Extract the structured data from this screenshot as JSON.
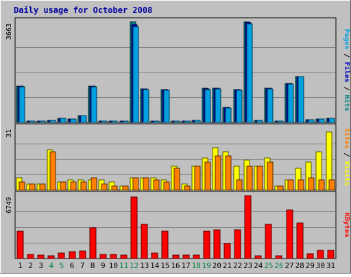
{
  "chart_data": {
    "type": "bar",
    "title": "Daily usage for October 2008",
    "categories": [
      "1",
      "2",
      "3",
      "4",
      "5",
      "6",
      "7",
      "8",
      "9",
      "10",
      "11",
      "12",
      "13",
      "14",
      "15",
      "16",
      "17",
      "18",
      "19",
      "20",
      "21",
      "22",
      "23",
      "24",
      "25",
      "26",
      "27",
      "28",
      "29",
      "30",
      "31"
    ],
    "weekend_days": [
      "4",
      "5",
      "11",
      "12",
      "18",
      "19",
      "25",
      "26"
    ],
    "panels": [
      {
        "id": "hits",
        "ymax": 3663,
        "ymax_label": "3663",
        "right_label_parts": [
          {
            "text": "Pages",
            "color": "#00a0e0"
          },
          {
            "text": " / ",
            "color": "#000000"
          },
          {
            "text": "Files",
            "color": "#0000c0"
          },
          {
            "text": " / ",
            "color": "#000000"
          },
          {
            "text": "Hits",
            "color": "#008080"
          }
        ],
        "series": [
          {
            "name": "Hits",
            "color": "#008080",
            "values": [
              1330,
              30,
              30,
              80,
              140,
              120,
              240,
              1330,
              30,
              30,
              30,
              3663,
              1220,
              30,
              1200,
              60,
              50,
              70,
              1240,
              1250,
              550,
              1200,
              3663,
              70,
              1250,
              40,
              1430,
              1680,
              90,
              120,
              160
            ]
          },
          {
            "name": "Files",
            "color": "#0000c0",
            "values": [
              1320,
              30,
              30,
              80,
              140,
              120,
              240,
              1320,
              30,
              30,
              30,
              3560,
              1210,
              30,
              1190,
              60,
              50,
              70,
              1220,
              1240,
              540,
              1190,
              3630,
              70,
              1240,
              40,
              1410,
              1670,
              90,
              120,
              150
            ]
          },
          {
            "name": "Pages",
            "color": "#00a0e0",
            "values": [
              1300,
              30,
              30,
              80,
              140,
              120,
              240,
              1300,
              30,
              30,
              30,
              3480,
              1200,
              30,
              1180,
              60,
              50,
              70,
              1200,
              1230,
              530,
              1180,
              3600,
              70,
              1230,
              40,
              1390,
              1660,
              90,
              120,
              150
            ]
          }
        ]
      },
      {
        "id": "visits",
        "ymax": 31,
        "ymax_label": "31",
        "right_label_parts": [
          {
            "text": "Sites",
            "color": "#ff8000"
          },
          {
            "text": " / ",
            "color": "#000000"
          },
          {
            "text": "Visits",
            "color": "#ffff00"
          }
        ],
        "series": [
          {
            "name": "Visits",
            "color": "#ffff00",
            "values": [
              6,
              3,
              3,
              20,
              4,
              5,
              5,
              5,
              5,
              4,
              2,
              6,
              6,
              6,
              5,
              12,
              3,
              12,
              16,
              21,
              19,
              12,
              15,
              12,
              16,
              2,
              5,
              11,
              14,
              19,
              29
            ]
          },
          {
            "name": "Sites",
            "color": "#ff8000",
            "values": [
              4,
              3,
              3,
              19,
              4,
              4,
              4,
              6,
              3,
              2,
              2,
              6,
              6,
              5,
              4,
              11,
              2,
              12,
              14,
              17,
              17,
              5,
              12,
              12,
              14,
              2,
              5,
              5,
              6,
              5,
              5
            ]
          }
        ]
      },
      {
        "id": "kbytes",
        "ymax": 6749,
        "ymax_label": "6749",
        "right_label_parts": [
          {
            "text": "KBytes",
            "color": "#ff0000"
          }
        ],
        "series": [
          {
            "name": "KBytes",
            "color": "#ff0000",
            "values": [
              2950,
              450,
              350,
              260,
              600,
              750,
              800,
              3300,
              450,
              450,
              400,
              6600,
              3700,
              600,
              2950,
              400,
              400,
              380,
              2900,
              3100,
              1600,
              3050,
              6749,
              260,
              3650,
              300,
              5200,
              3850,
              550,
              900,
              900
            ]
          }
        ]
      }
    ]
  }
}
